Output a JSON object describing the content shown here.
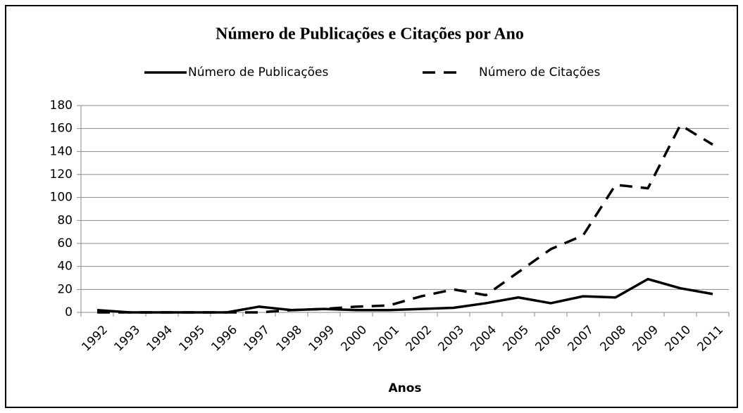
{
  "chart_data": {
    "type": "line",
    "title": "Número de Publicações e Citações por Ano",
    "x_label": "Anos",
    "categories": [
      "1992",
      "1993",
      "1994",
      "1995",
      "1996",
      "1997",
      "1998",
      "1999",
      "2000",
      "2001",
      "2002",
      "2003",
      "2004",
      "2005",
      "2006",
      "2007",
      "2008",
      "2009",
      "2010",
      "2011"
    ],
    "series": [
      {
        "name": "Número de Publicações",
        "color": "#000000",
        "dash": "solid",
        "values": [
          2,
          0,
          0,
          0,
          0,
          5,
          2,
          3,
          2,
          2,
          3,
          4,
          8,
          13,
          8,
          14,
          13,
          29,
          21,
          16
        ]
      },
      {
        "name": "Número de Citações",
        "color": "#000000",
        "dash": "dashed",
        "values": [
          0,
          0,
          0,
          0,
          0,
          0,
          2,
          3,
          5,
          6,
          14,
          20,
          15,
          35,
          55,
          67,
          111,
          108,
          163,
          146
        ]
      }
    ],
    "ylim": [
      0,
      180
    ],
    "yticks": [
      0,
      20,
      40,
      60,
      80,
      100,
      120,
      140,
      160,
      180
    ],
    "grid": true,
    "legend": "top"
  }
}
